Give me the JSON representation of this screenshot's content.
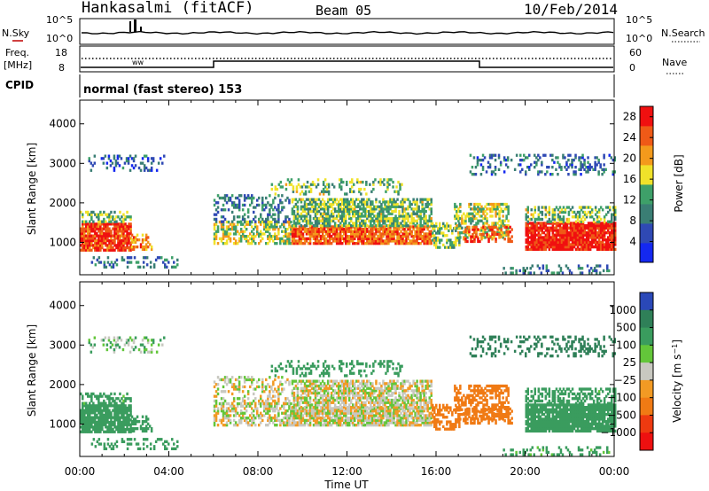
{
  "header": {
    "station": "Hankasalmi (fitACF)",
    "beam": "Beam 05",
    "date": "10/Feb/2014"
  },
  "strip_panels": {
    "noise": {
      "left_label": "N.Sky",
      "right_label": "N.Search",
      "left_ticks": [
        "10^5",
        "10^0"
      ],
      "right_ticks": [
        "10^5",
        "10^0"
      ]
    },
    "freq": {
      "left_label_line1": "Freq.",
      "left_label_line2": "[MHz]",
      "right_label": "Nave",
      "left_ticks": [
        "18",
        "8"
      ],
      "right_ticks": [
        "60",
        "0"
      ]
    },
    "cpid": {
      "label": "CPID",
      "text": "normal (fast stereo) 153"
    }
  },
  "chart_data": [
    {
      "type": "heatmap",
      "title": "",
      "xlabel": "Time UT",
      "ylabel": "Slant Range [km]",
      "x_ticks": [
        "00:00",
        "04:00",
        "08:00",
        "12:00",
        "16:00",
        "20:00",
        "00:00"
      ],
      "xlim_hours": [
        0,
        24
      ],
      "y_ticks": [
        1000,
        2000,
        3000,
        4000
      ],
      "ylim": [
        180,
        4600
      ],
      "colorbar": {
        "label": "Power [dB]",
        "ticks": [
          4,
          8,
          12,
          16,
          20,
          24,
          28
        ],
        "range": [
          0,
          30
        ],
        "colors": [
          "#1428f0",
          "#2f49b4",
          "#3a7e74",
          "#3ea069",
          "#f0e22a",
          "#f39a1c",
          "#ef5a17",
          "#f01010"
        ]
      },
      "features": [
        {
          "name": "near-range red echo 00-02 UT",
          "t": [
            0.0,
            2.3
          ],
          "range_km": [
            800,
            1500
          ],
          "power_db": 28
        },
        {
          "name": "main band 06-17 UT",
          "t": [
            6.0,
            17.0
          ],
          "range_km": [
            900,
            2100
          ],
          "power_db": 18
        },
        {
          "name": "strong echo 20-24 UT",
          "t": [
            20.0,
            24.0
          ],
          "range_km": [
            800,
            1600
          ],
          "power_db": 28
        },
        {
          "name": "far range scatter",
          "t": [
            0.0,
            24.0
          ],
          "range_km": [
            2800,
            3200
          ],
          "power_db": 8
        }
      ]
    },
    {
      "type": "heatmap",
      "title": "",
      "xlabel": "Time UT",
      "ylabel": "Slant Range [km]",
      "x_ticks": [
        "00:00",
        "04:00",
        "08:00",
        "12:00",
        "16:00",
        "20:00",
        "00:00"
      ],
      "xlim_hours": [
        0,
        24
      ],
      "y_ticks": [
        1000,
        2000,
        3000,
        4000
      ],
      "ylim": [
        180,
        4600
      ],
      "colorbar": {
        "label": "Velocity [m s^-1]",
        "ticks": [
          "1000",
          "500",
          "100",
          "25",
          "−25",
          "−100",
          "−500",
          "−1000"
        ],
        "colors": [
          "#2a48b8",
          "#2f8058",
          "#3a9c5e",
          "#63c63a",
          "#c8c8c0",
          "#f29a24",
          "#f07a14",
          "#ee3a10",
          "#ee1010"
        ]
      },
      "features": [
        {
          "name": "green echoes 00-02 UT",
          "t": [
            0.0,
            2.3
          ],
          "range_km": [
            800,
            1700
          ],
          "velocity_ms": 150
        },
        {
          "name": "ground scatter band 06-16 UT",
          "t": [
            6.0,
            16.5
          ],
          "range_km": [
            1000,
            2200
          ],
          "velocity_ms": 0
        },
        {
          "name": "orange echo 17-19 UT",
          "t": [
            16.5,
            19.0
          ],
          "range_km": [
            1200,
            2000
          ],
          "velocity_ms": -200
        },
        {
          "name": "green echoes 20-24 UT",
          "t": [
            20.0,
            24.0
          ],
          "range_km": [
            800,
            1800
          ],
          "velocity_ms": 150
        }
      ]
    }
  ]
}
